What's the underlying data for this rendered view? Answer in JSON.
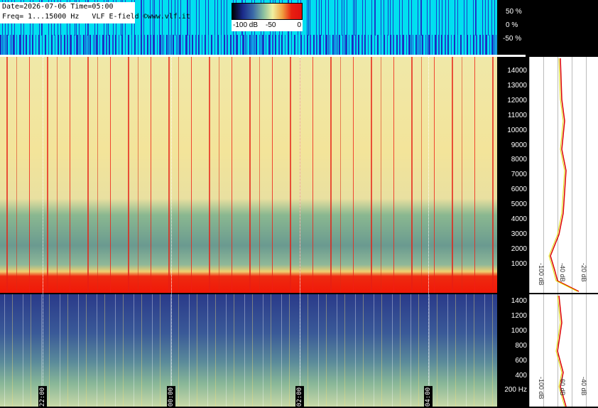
{
  "header": {
    "date_time": "Date=2026-07-06 Time=05:00",
    "freq": "Freq= 1...15000 Hz   VLF E-field ©www.vlf.it"
  },
  "colorbar": {
    "labels": [
      "-100 dB",
      "-50",
      "0"
    ]
  },
  "amplitude_axis": {
    "labels": [
      "50 %",
      "0 %",
      "-50 %"
    ]
  },
  "upper_freq_axis": {
    "labels": [
      "14000",
      "13000",
      "12000",
      "11000",
      "10000",
      "9000",
      "8000",
      "7000",
      "6000",
      "5000",
      "4000",
      "3000",
      "2000",
      "1000"
    ]
  },
  "lower_freq_axis": {
    "labels": [
      "1400",
      "1200",
      "1000",
      "800",
      "600",
      "400",
      "200 Hz"
    ]
  },
  "time_labels": [
    "22:00",
    "00:00",
    "02:00",
    "04:00"
  ],
  "upper_db_labels": [
    "-100 dB",
    "-40 dB",
    "-20 dB"
  ],
  "lower_db_labels": [
    "-100 dB",
    "-60 dB",
    "-40 dB"
  ]
}
